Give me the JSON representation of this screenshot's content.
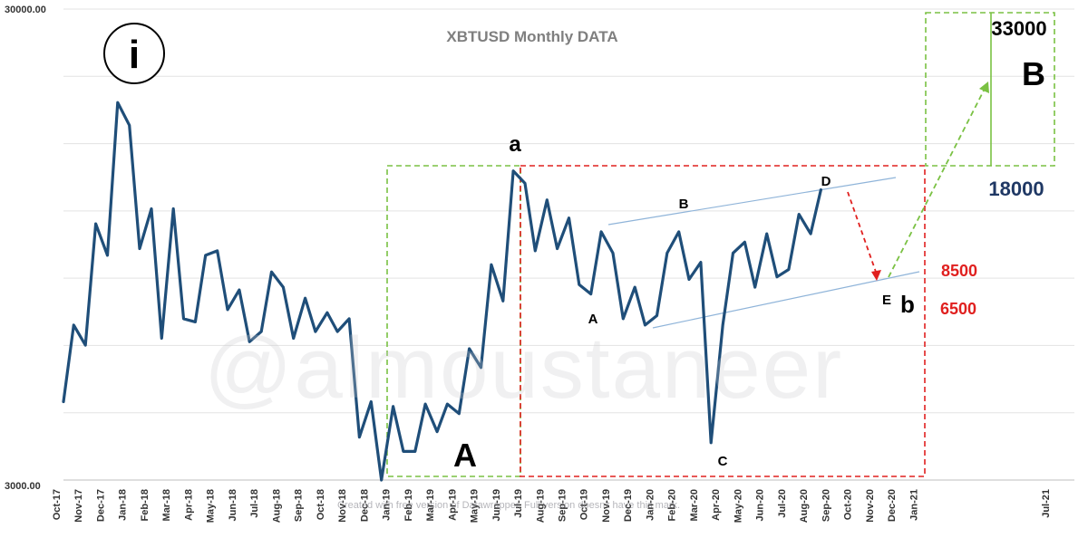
{
  "chart_data": {
    "type": "line",
    "title": "XBTUSD Monthly DATA",
    "xlabel": "",
    "ylabel": "",
    "y_scale": "log",
    "ylim": [
      3000,
      30000
    ],
    "y_tick_labels": [
      "30000.00",
      "3000.00"
    ],
    "grid": true,
    "legend": "none",
    "x_tick_labels": [
      "Oct-17",
      "Nov-17",
      "Dec-17",
      "Jan-18",
      "Feb-18",
      "Mar-18",
      "Apr-18",
      "May-18",
      "Jun-18",
      "Jul-18",
      "Aug-18",
      "Sep-18",
      "Oct-18",
      "Nov-18",
      "Dec-18",
      "Jan-19",
      "Feb-19",
      "Mar-19",
      "Apr-19",
      "May-19",
      "Jun-19",
      "Jul-19",
      "Aug-19",
      "Sep-19",
      "Oct-19",
      "Nov-19",
      "Dec-19",
      "Jan-20",
      "Feb-20",
      "Mar-20",
      "Apr-20",
      "May-20",
      "Jun-20",
      "Jul-20",
      "Aug-20",
      "Sep-20",
      "Oct-20",
      "Nov-20",
      "Dec-20",
      "Jan-21",
      "Jul-21"
    ],
    "series": [
      {
        "color": "#1f4e79",
        "points": [
          [
            "2017-10-01",
            4400
          ],
          [
            "2017-10-15",
            6400
          ],
          [
            "2017-11-01",
            5800
          ],
          [
            "2017-11-15",
            10500
          ],
          [
            "2017-12-01",
            9000
          ],
          [
            "2017-12-15",
            19000
          ],
          [
            "2018-01-01",
            17000
          ],
          [
            "2018-01-15",
            9300
          ],
          [
            "2018-02-01",
            11300
          ],
          [
            "2018-02-15",
            6000
          ],
          [
            "2018-03-01",
            11300
          ],
          [
            "2018-03-15",
            6600
          ],
          [
            "2018-04-01",
            6500
          ],
          [
            "2018-04-15",
            9000
          ],
          [
            "2018-05-01",
            9200
          ],
          [
            "2018-05-15",
            6900
          ],
          [
            "2018-06-01",
            7600
          ],
          [
            "2018-06-15",
            5900
          ],
          [
            "2018-07-01",
            6200
          ],
          [
            "2018-07-15",
            8300
          ],
          [
            "2018-08-01",
            7700
          ],
          [
            "2018-08-15",
            6000
          ],
          [
            "2018-09-01",
            7300
          ],
          [
            "2018-09-15",
            6200
          ],
          [
            "2018-10-01",
            6800
          ],
          [
            "2018-10-15",
            6200
          ],
          [
            "2018-11-01",
            6600
          ],
          [
            "2018-11-15",
            3700
          ],
          [
            "2018-12-01",
            4400
          ],
          [
            "2018-12-15",
            3000
          ],
          [
            "2019-01-01",
            4300
          ],
          [
            "2019-01-15",
            3450
          ],
          [
            "2019-02-01",
            3450
          ],
          [
            "2019-02-15",
            4350
          ],
          [
            "2019-03-01",
            3800
          ],
          [
            "2019-03-15",
            4350
          ],
          [
            "2019-04-01",
            4150
          ],
          [
            "2019-04-15",
            5700
          ],
          [
            "2019-05-01",
            5200
          ],
          [
            "2019-05-15",
            8600
          ],
          [
            "2019-06-01",
            7200
          ],
          [
            "2019-06-15",
            13600
          ],
          [
            "2019-07-01",
            12800
          ],
          [
            "2019-07-15",
            9200
          ],
          [
            "2019-08-01",
            11800
          ],
          [
            "2019-08-15",
            9300
          ],
          [
            "2019-09-01",
            10800
          ],
          [
            "2019-09-15",
            7800
          ],
          [
            "2019-10-01",
            7450
          ],
          [
            "2019-10-15",
            10100
          ],
          [
            "2019-11-01",
            9100
          ],
          [
            "2019-11-15",
            6600
          ],
          [
            "2019-12-01",
            7700
          ],
          [
            "2019-12-15",
            6400
          ],
          [
            "2020-01-01",
            6700
          ],
          [
            "2020-01-15",
            9100
          ],
          [
            "2020-02-01",
            10100
          ],
          [
            "2020-02-15",
            8000
          ],
          [
            "2020-03-01",
            8700
          ],
          [
            "2020-03-15",
            3600
          ],
          [
            "2020-04-01",
            6400
          ],
          [
            "2020-04-15",
            9100
          ],
          [
            "2020-05-01",
            9600
          ],
          [
            "2020-05-15",
            7700
          ],
          [
            "2020-06-01",
            10000
          ],
          [
            "2020-06-15",
            8100
          ],
          [
            "2020-07-01",
            8400
          ],
          [
            "2020-07-15",
            11000
          ],
          [
            "2020-08-01",
            10000
          ],
          [
            "2020-08-15",
            12400
          ]
        ]
      }
    ],
    "annotations": {
      "circle_label": "i",
      "wave_big_A": "A",
      "wave_big_B": "B",
      "wave_a": "a",
      "wave_b": "b",
      "abcde_A": "A",
      "abcde_B": "B",
      "abcde_C": "C",
      "abcde_D": "D",
      "abcde_E": "E",
      "target_33000": "33000",
      "target_18000": "18000",
      "support_8500": "8500",
      "support_6500": "6500"
    },
    "colors": {
      "line": "#1f4e79",
      "green_box": "#7ac143",
      "red_box": "#e0201f",
      "channel": "#8fb4d9",
      "target_text": "#1f3864",
      "support_text": "#e0201f"
    }
  },
  "watermark": "@almoustaneer",
  "footer_note": "Created with free version of Datawrapper. Full version doesn't have this mark."
}
